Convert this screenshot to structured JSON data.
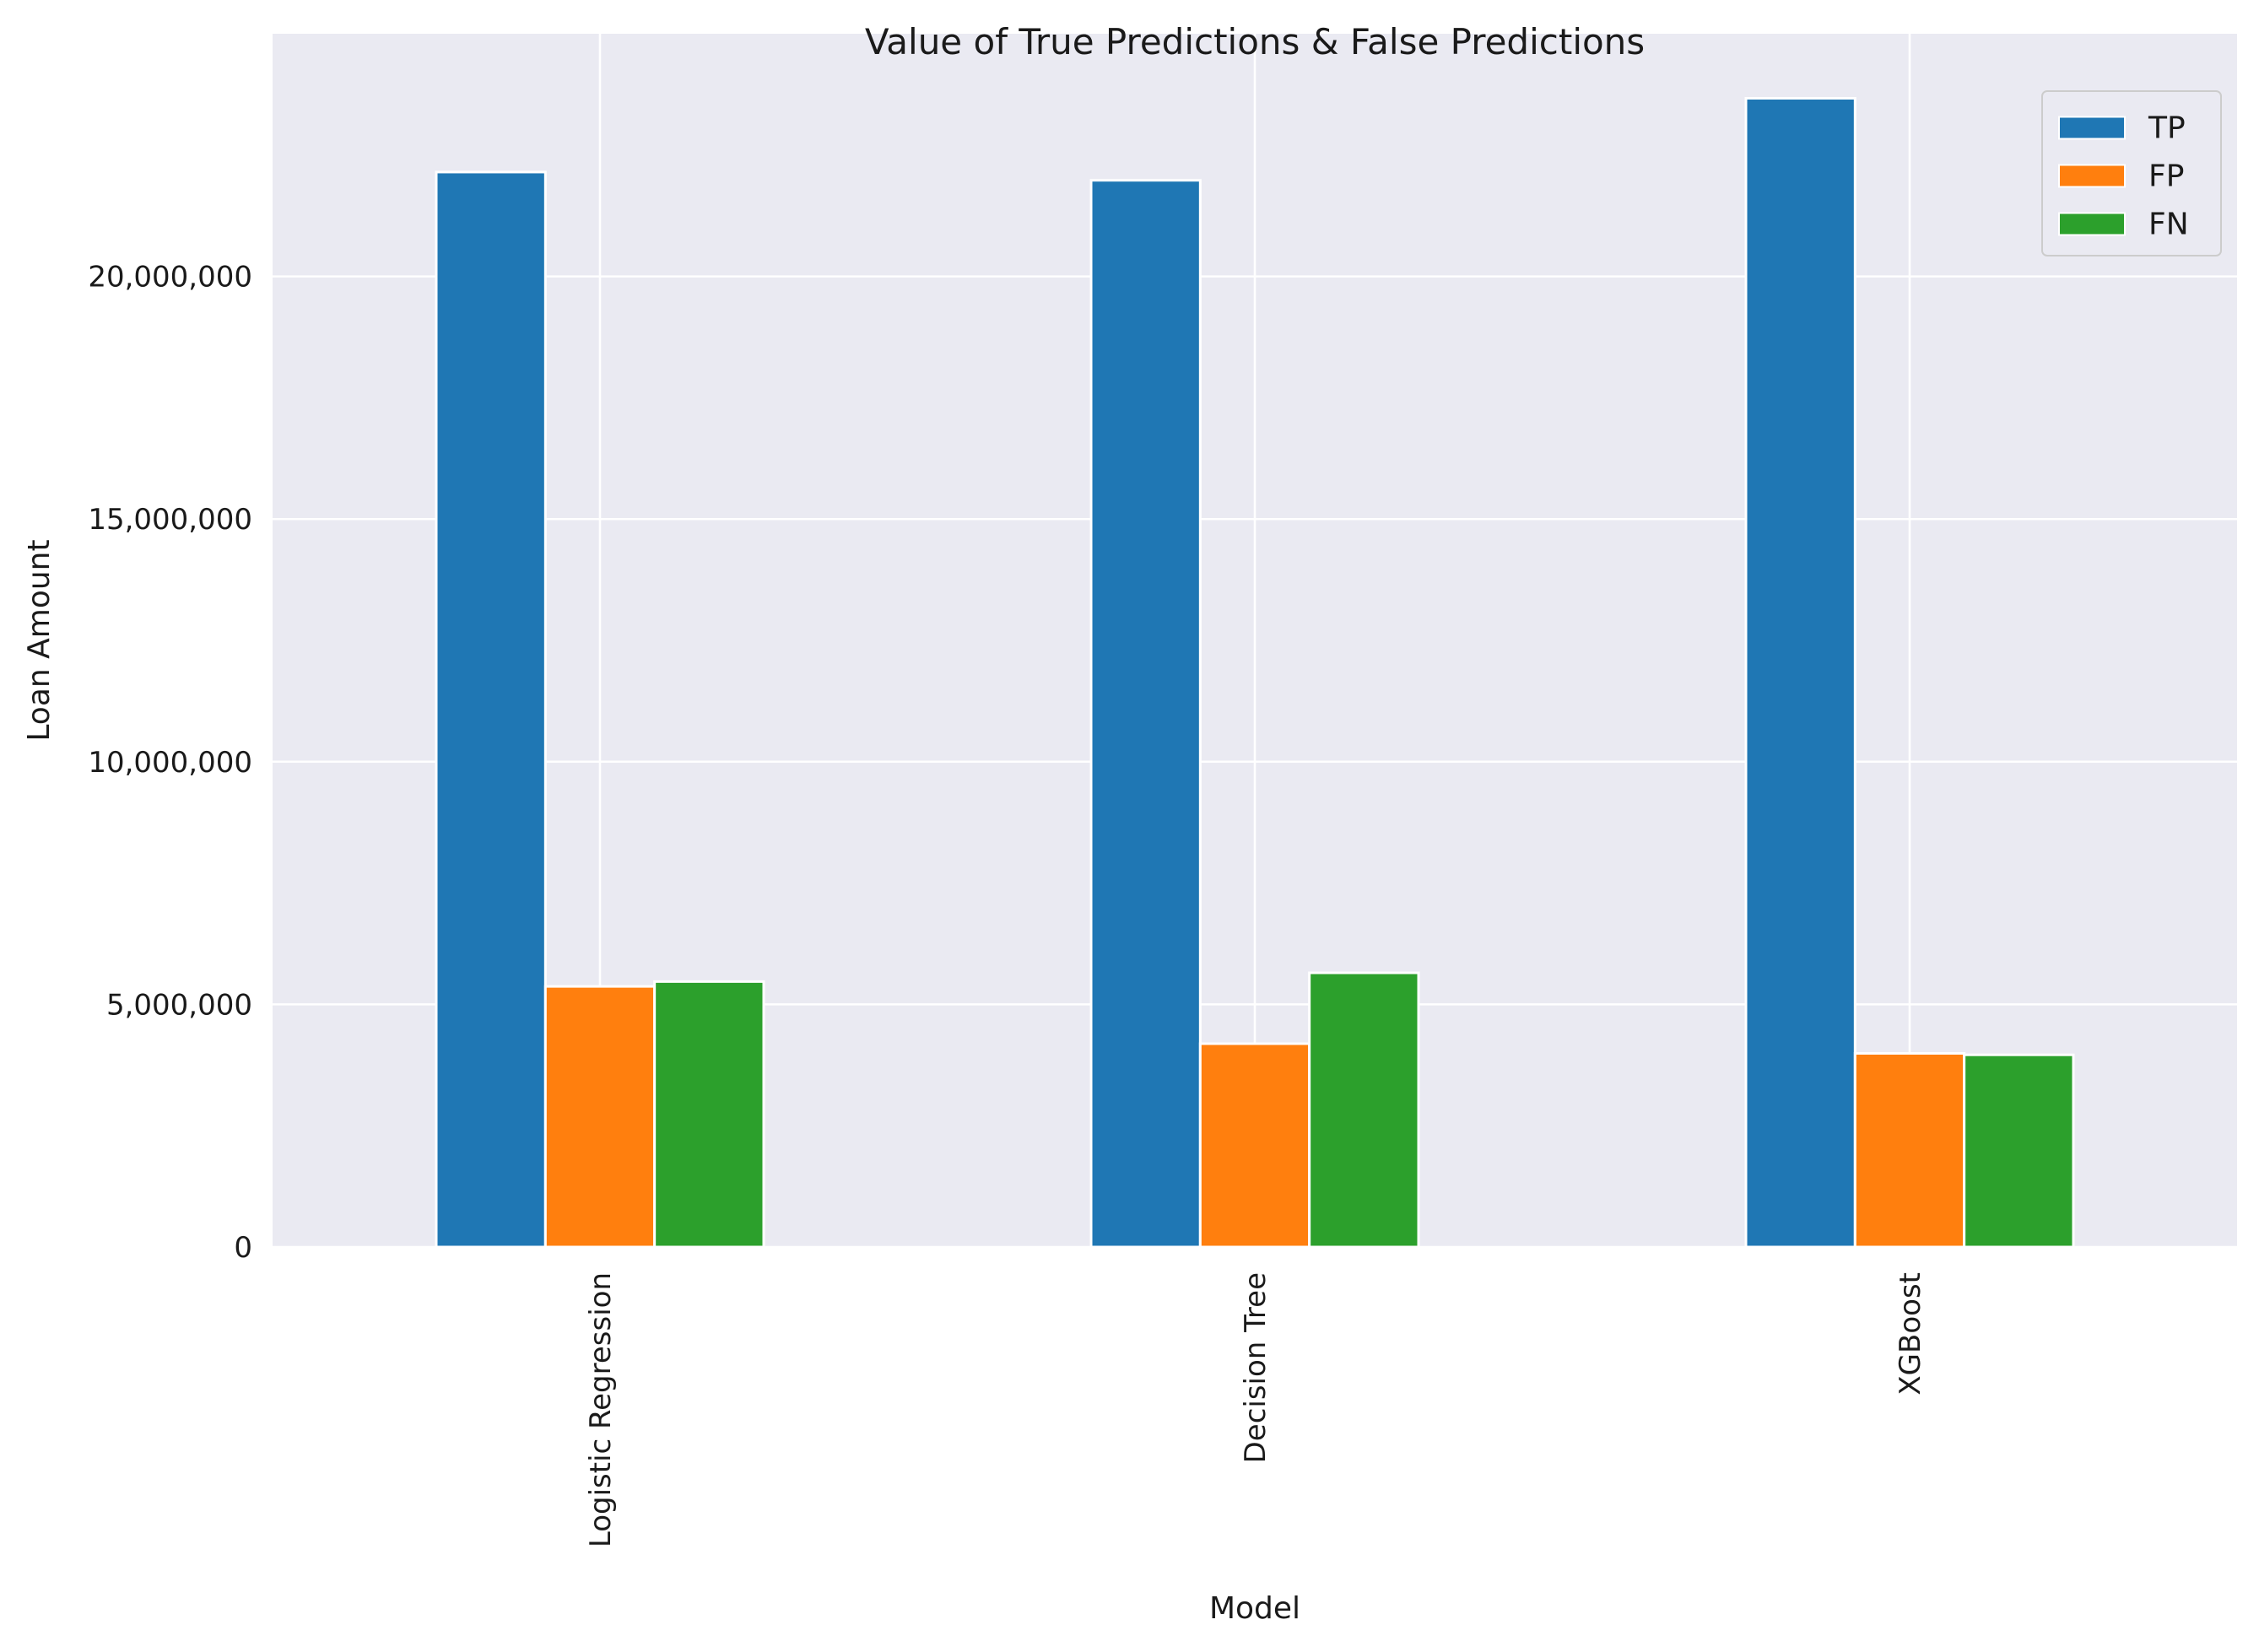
{
  "chart_data": {
    "type": "bar",
    "title": "Value of True Predictions & False Predictions",
    "xlabel": "Model",
    "ylabel": "Loan Amount",
    "categories": [
      "Logistic Regression",
      "Decision Tree",
      "XGBoost"
    ],
    "series": [
      {
        "name": "TP",
        "color": "#1f77b4",
        "values": [
          22150000,
          21980000,
          23670000
        ]
      },
      {
        "name": "FP",
        "color": "#ff7f0e",
        "values": [
          5370000,
          4190000,
          3990000
        ]
      },
      {
        "name": "FN",
        "color": "#2ca02c",
        "values": [
          5470000,
          5650000,
          3960000
        ]
      }
    ],
    "ylim": [
      0,
      25000000
    ],
    "yticks": [
      0,
      5000000,
      10000000,
      15000000,
      20000000
    ],
    "ytick_labels": [
      "0",
      "5,000,000",
      "10,000,000",
      "15,000,000",
      "20,000,000"
    ],
    "grid": true,
    "legend_position": "top-right",
    "style": {
      "plot_background": "#eaeaf2",
      "grid_color": "#ffffff"
    }
  }
}
